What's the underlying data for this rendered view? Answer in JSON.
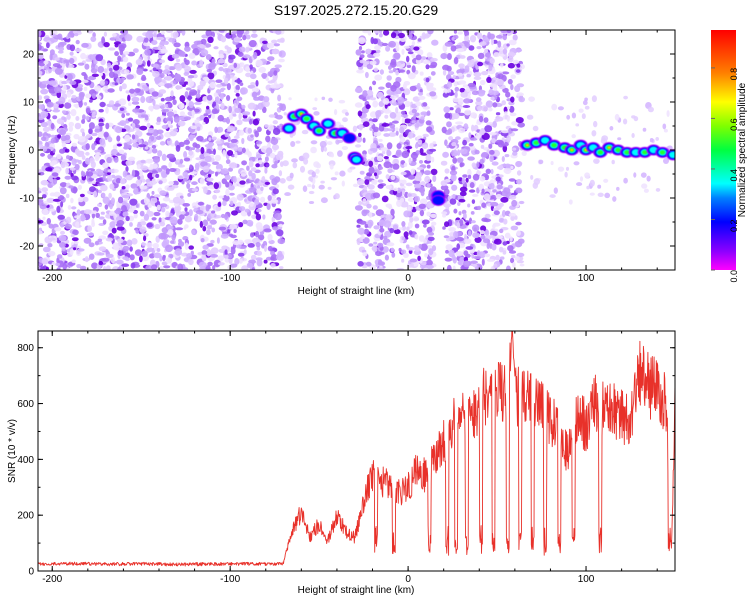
{
  "title": "S197.2025.272.15.20.G29",
  "colors": {
    "snr_line": "#e8312a",
    "speckle_dark": "#6a00e0",
    "speckle_light": "#d6b8ff",
    "axis": "#000000"
  },
  "chart_data": [
    {
      "type": "heatmap",
      "name": "spectrogram",
      "xlabel": "Height of straight line (km)",
      "ylabel": "Frequency (Hz)",
      "xlim": [
        -208,
        150
      ],
      "ylim": [
        -25,
        25
      ],
      "xticks": [
        -200,
        -100,
        0,
        100
      ],
      "xtick_labels": [
        "-200",
        "-100",
        "0",
        "100"
      ],
      "yticks": [
        -20,
        -10,
        0,
        10,
        20
      ],
      "ytick_labels": [
        "-20",
        "-10",
        "0",
        "10",
        "20"
      ],
      "noise_regions": [
        [
          -208,
          -70
        ],
        [
          -28,
          15
        ],
        [
          20,
          64
        ]
      ],
      "colorbar": {
        "label": "Normalized spectral amplitude",
        "range": [
          0,
          0.95
        ],
        "ticks": [
          0,
          0.2,
          0.4,
          0.6,
          0.8
        ],
        "tick_labels": [
          "0.0",
          "0.2",
          "0.4",
          "0.6",
          "0.8"
        ]
      },
      "signal_blobs": [
        {
          "x": -67,
          "f": 4.5,
          "a": 0.35
        },
        {
          "x": -64,
          "f": 7.0,
          "a": 0.55
        },
        {
          "x": -60,
          "f": 7.5,
          "a": 0.75
        },
        {
          "x": -57,
          "f": 6.5,
          "a": 0.5
        },
        {
          "x": -53,
          "f": 5.0,
          "a": 0.45
        },
        {
          "x": -50,
          "f": 4.0,
          "a": 0.55
        },
        {
          "x": -45,
          "f": 5.5,
          "a": 0.35
        },
        {
          "x": -41,
          "f": 3.5,
          "a": 0.6
        },
        {
          "x": -37,
          "f": 3.5,
          "a": 0.45
        },
        {
          "x": -33,
          "f": 2.5,
          "a": 0.3
        },
        {
          "x": -30,
          "f": -1.5,
          "a": 0.4
        },
        {
          "x": -29,
          "f": -2.0,
          "a": 0.45
        },
        {
          "x": 17,
          "f": -9.5,
          "a": 0.2
        },
        {
          "x": 17,
          "f": -10.5,
          "a": 0.25
        },
        {
          "x": 67,
          "f": 1.0,
          "a": 0.75
        },
        {
          "x": 72,
          "f": 1.5,
          "a": 0.5
        },
        {
          "x": 77,
          "f": 2.0,
          "a": 0.45
        },
        {
          "x": 82,
          "f": 1.0,
          "a": 0.55
        },
        {
          "x": 88,
          "f": 0.5,
          "a": 0.6
        },
        {
          "x": 92,
          "f": 0.0,
          "a": 0.85
        },
        {
          "x": 97,
          "f": 1.0,
          "a": 0.45
        },
        {
          "x": 100,
          "f": 0.0,
          "a": 0.75
        },
        {
          "x": 104,
          "f": 0.5,
          "a": 0.4
        },
        {
          "x": 108,
          "f": -0.5,
          "a": 0.55
        },
        {
          "x": 113,
          "f": 0.5,
          "a": 0.8
        },
        {
          "x": 118,
          "f": 0.0,
          "a": 0.5
        },
        {
          "x": 123,
          "f": -0.5,
          "a": 0.55
        },
        {
          "x": 128,
          "f": -0.5,
          "a": 0.45
        },
        {
          "x": 133,
          "f": -0.5,
          "a": 0.5
        },
        {
          "x": 138,
          "f": 0.0,
          "a": 0.45
        },
        {
          "x": 143,
          "f": -0.5,
          "a": 0.55
        },
        {
          "x": 149,
          "f": -1.0,
          "a": 0.4
        }
      ]
    },
    {
      "type": "line",
      "name": "snr",
      "xlabel": "Height of straight line (km)",
      "ylabel": "SNR (10 * v/v)",
      "xlim": [
        -208,
        150
      ],
      "ylim": [
        0,
        860
      ],
      "xticks": [
        -200,
        -100,
        0,
        100
      ],
      "xtick_labels": [
        "-200",
        "-100",
        "0",
        "100"
      ],
      "yticks": [
        0,
        200,
        400,
        600,
        800
      ],
      "ytick_labels": [
        "0",
        "200",
        "400",
        "600",
        "800"
      ],
      "series": [
        {
          "name": "SNR",
          "x": [
            -208,
            -190,
            -170,
            -150,
            -130,
            -110,
            -90,
            -75,
            -70,
            -65,
            -60,
            -55,
            -50,
            -45,
            -40,
            -35,
            -30,
            -25,
            -20,
            -15,
            -10,
            -5,
            0,
            5,
            10,
            15,
            20,
            25,
            30,
            35,
            40,
            45,
            50,
            55,
            58,
            60,
            65,
            70,
            75,
            80,
            85,
            90,
            95,
            100,
            105,
            110,
            115,
            120,
            125,
            130,
            135,
            140,
            145,
            148,
            150
          ],
          "values": [
            25,
            27,
            24,
            26,
            23,
            25,
            26,
            25,
            28,
            150,
            210,
            120,
            170,
            110,
            200,
            140,
            120,
            250,
            350,
            320,
            310,
            280,
            300,
            370,
            340,
            400,
            460,
            520,
            560,
            540,
            600,
            640,
            650,
            620,
            850,
            620,
            640,
            640,
            600,
            540,
            500,
            420,
            560,
            520,
            600,
            580,
            580,
            560,
            520,
            700,
            670,
            640,
            600,
            80,
            600
          ]
        }
      ],
      "dropouts": [
        -18,
        -8,
        12,
        22,
        27,
        33,
        41,
        48,
        56,
        63,
        70,
        77,
        85,
        93,
        108,
        147
      ]
    }
  ]
}
